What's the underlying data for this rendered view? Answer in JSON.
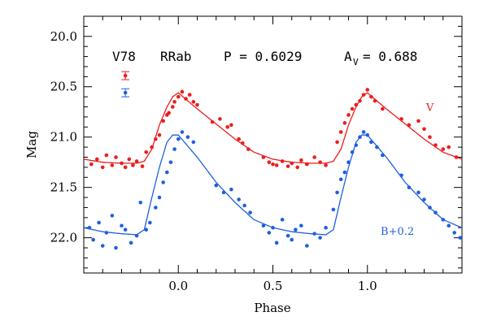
{
  "chart_data": {
    "type": "scatter",
    "title": "",
    "xlabel": "Phase",
    "ylabel": "Mag",
    "xlim": [
      -0.5,
      1.5
    ],
    "ylim": [
      22.35,
      19.8
    ],
    "y_inverted": true,
    "x_ticks": [
      0.0,
      0.5,
      1.0
    ],
    "x_tick_labels": [
      "0.0",
      "0.5",
      "1.0"
    ],
    "y_ticks": [
      20.0,
      20.5,
      21.0,
      21.5,
      22.0
    ],
    "y_tick_labels": [
      "20.0",
      "20.5",
      "21.0",
      "21.5",
      "22.0"
    ],
    "grid": false,
    "annotation": {
      "star": "V78",
      "type": "RRab",
      "period": "P = 0.6029",
      "amp_label": "A",
      "amp_sub": "V",
      "amp_value": "= 0.688"
    },
    "error_bars": [
      {
        "series": "V",
        "x": -0.28,
        "y": 20.39,
        "err": 0.04
      },
      {
        "series": "B+0.2",
        "x": -0.28,
        "y": 20.56,
        "err": 0.04
      }
    ],
    "series": [
      {
        "name": "V",
        "label_x": 1.31,
        "label_y": 20.74,
        "color": "#ee1c1c",
        "template_phase": [
          0.0,
          0.1,
          0.2,
          0.3,
          0.4,
          0.5,
          0.6,
          0.7,
          0.78,
          0.82,
          0.86,
          0.9,
          0.94,
          0.97,
          1.0
        ],
        "template_mag": [
          20.56,
          20.72,
          20.87,
          21.02,
          21.15,
          21.22,
          21.25,
          21.26,
          21.26,
          21.24,
          21.12,
          20.88,
          20.7,
          20.6,
          20.56
        ],
        "phase": [
          -0.46,
          -0.43,
          -0.4,
          -0.38,
          -0.35,
          -0.33,
          -0.3,
          -0.28,
          -0.26,
          -0.24,
          -0.22,
          -0.19,
          -0.17,
          -0.14,
          -0.12,
          -0.1,
          -0.08,
          -0.06,
          -0.05,
          -0.03,
          -0.02,
          0.0,
          0.02,
          0.04,
          0.06,
          0.08,
          0.1,
          0.18,
          0.22,
          0.26,
          0.28,
          0.32,
          0.34,
          0.37,
          0.45,
          0.48,
          0.5,
          0.52,
          0.55,
          0.58,
          0.6,
          0.63,
          0.65,
          0.68,
          0.72,
          0.75,
          0.78,
          0.84,
          0.86,
          0.88,
          0.9,
          0.92,
          0.94,
          0.96,
          0.98,
          1.0,
          1.02,
          1.04,
          1.08,
          1.18,
          1.22,
          1.27,
          1.3,
          1.33,
          1.36,
          1.4,
          1.43,
          1.47
        ],
        "mag": [
          21.27,
          21.22,
          21.3,
          21.18,
          21.28,
          21.2,
          21.26,
          21.3,
          21.22,
          21.28,
          21.24,
          21.29,
          21.15,
          21.1,
          21.02,
          20.98,
          20.84,
          20.78,
          20.76,
          20.7,
          20.65,
          20.6,
          20.55,
          20.62,
          20.58,
          20.65,
          20.68,
          20.85,
          20.82,
          20.9,
          20.88,
          21.02,
          21.06,
          21.12,
          21.2,
          21.25,
          21.27,
          21.28,
          21.24,
          21.29,
          21.26,
          21.3,
          21.23,
          21.27,
          21.2,
          21.25,
          21.28,
          21.05,
          20.95,
          20.86,
          20.78,
          20.72,
          20.68,
          20.64,
          20.58,
          20.53,
          20.6,
          20.64,
          20.72,
          20.82,
          20.88,
          20.84,
          20.92,
          21.0,
          21.08,
          21.12,
          21.1,
          21.2
        ]
      },
      {
        "name": "B+0.2",
        "label_x": 1.07,
        "label_y": 21.97,
        "color": "#1f5fe0",
        "template_phase": [
          0.0,
          0.1,
          0.2,
          0.3,
          0.4,
          0.5,
          0.6,
          0.7,
          0.78,
          0.82,
          0.86,
          0.9,
          0.94,
          0.97,
          1.0
        ],
        "template_mag": [
          20.98,
          21.2,
          21.45,
          21.65,
          21.82,
          21.9,
          21.94,
          21.96,
          21.97,
          21.92,
          21.6,
          21.3,
          21.05,
          20.98,
          20.98
        ],
        "phase": [
          -0.47,
          -0.45,
          -0.42,
          -0.4,
          -0.38,
          -0.35,
          -0.33,
          -0.3,
          -0.28,
          -0.25,
          -0.22,
          -0.2,
          -0.17,
          -0.15,
          -0.12,
          -0.1,
          -0.08,
          -0.06,
          -0.04,
          -0.02,
          0.0,
          0.02,
          0.05,
          0.08,
          0.2,
          0.24,
          0.28,
          0.32,
          0.35,
          0.38,
          0.45,
          0.48,
          0.5,
          0.52,
          0.55,
          0.58,
          0.6,
          0.62,
          0.65,
          0.68,
          0.72,
          0.75,
          0.78,
          0.82,
          0.84,
          0.86,
          0.88,
          0.9,
          0.92,
          0.94,
          0.96,
          0.98,
          1.0,
          1.02,
          1.05,
          1.08,
          1.18,
          1.22,
          1.27,
          1.3,
          1.33,
          1.36,
          1.4,
          1.43,
          1.46,
          1.49
        ],
        "mag": [
          21.9,
          22.02,
          21.85,
          22.08,
          21.95,
          21.78,
          22.1,
          21.88,
          21.92,
          22.05,
          21.98,
          21.65,
          21.92,
          21.85,
          21.7,
          21.6,
          21.45,
          21.35,
          21.25,
          21.12,
          21.02,
          20.95,
          21.0,
          21.05,
          21.48,
          21.55,
          21.52,
          21.62,
          21.68,
          21.75,
          21.88,
          21.95,
          21.9,
          22.05,
          21.82,
          21.98,
          22.02,
          21.92,
          21.88,
          22.08,
          21.96,
          22.0,
          21.9,
          21.72,
          21.55,
          21.42,
          21.35,
          21.25,
          21.15,
          21.08,
          21.0,
          20.95,
          20.98,
          21.05,
          21.1,
          21.18,
          21.38,
          21.5,
          21.55,
          21.62,
          21.7,
          21.75,
          21.82,
          21.88,
          21.95,
          22.0
        ]
      }
    ]
  }
}
